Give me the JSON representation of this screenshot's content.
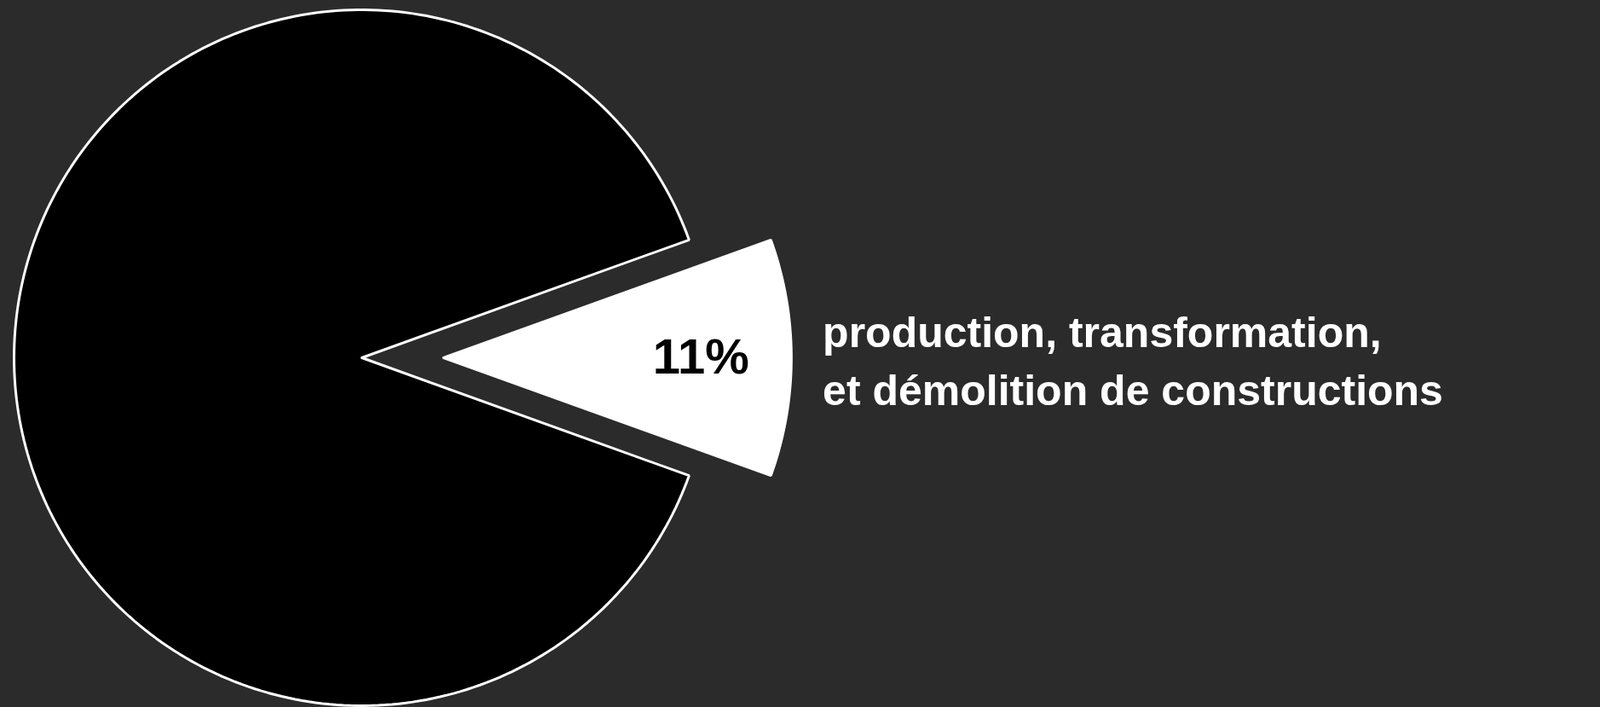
{
  "chart_data": {
    "type": "pie",
    "categories": [
      "production, transformation, et démolition de constructions",
      null
    ],
    "values": [
      11,
      89
    ],
    "colors": [
      "#ffffff",
      "#000000"
    ],
    "data_labels": true,
    "value_labels": [
      "11%",
      null
    ]
  }
}
